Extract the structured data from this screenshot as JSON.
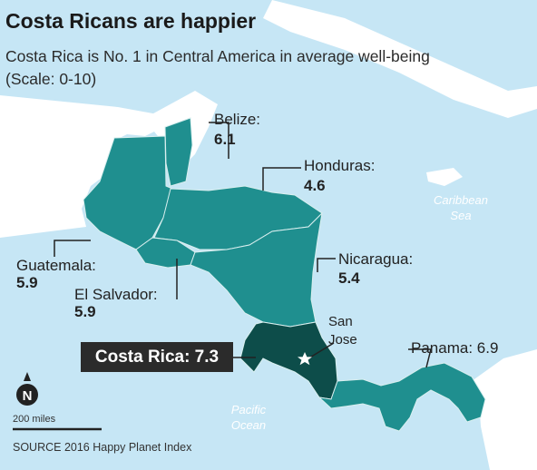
{
  "title": "Costa Ricans are happier",
  "subtitle": "Costa Rica is No. 1 in Central America in average well-being (Scale: 0-10)",
  "countries": {
    "belize": {
      "name": "Belize:",
      "value": "6.1"
    },
    "honduras": {
      "name": "Honduras:",
      "value": "4.6"
    },
    "guatemala": {
      "name": "Guatemala:",
      "value": "5.9"
    },
    "el_salvador": {
      "name": "El Salvador:",
      "value": "5.9"
    },
    "nicaragua": {
      "name": "Nicaragua:",
      "value": "5.4"
    },
    "costa_rica": {
      "label": "Costa Rica: 7.3"
    },
    "panama": {
      "label": "Panama: 6.9"
    }
  },
  "capital": {
    "line1": "San",
    "line2": "Jose"
  },
  "seas": {
    "caribbean": {
      "line1": "Caribbean",
      "line2": "Sea"
    },
    "pacific": {
      "line1": "Pacific",
      "line2": "Ocean"
    }
  },
  "compass": {
    "letter": "N",
    "icon": "north-arrow-icon"
  },
  "scale": {
    "label": "200 miles"
  },
  "source": "SOURCE 2016 Happy Planet Index",
  "colors": {
    "water": "#c6e6f5",
    "land": "#ffffff",
    "country": "#1f8f8f",
    "costa_rica": "#0d4d4a",
    "border": "#d9efef",
    "label_box": "#2b2b2b"
  }
}
